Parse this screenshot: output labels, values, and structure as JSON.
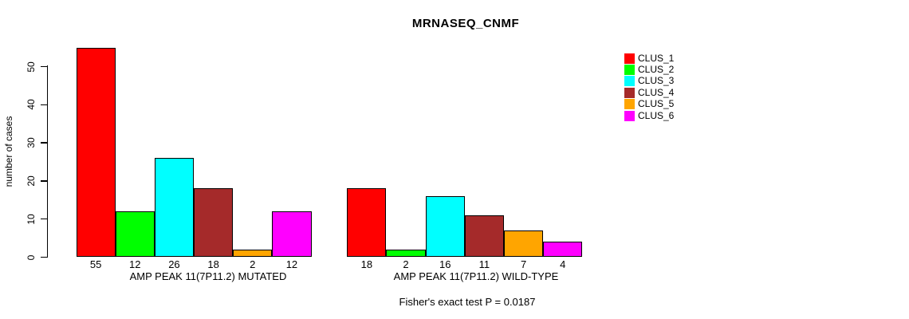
{
  "chart_data": {
    "type": "bar",
    "title": "MRNASEQ_CNMF",
    "ylabel": "number of cases",
    "xlabel": "",
    "yticks": [
      0,
      10,
      20,
      30,
      40,
      50
    ],
    "ylim": [
      0,
      55
    ],
    "grid": false,
    "legend_position": "right",
    "categories": [
      "AMP PEAK 11(7P11.2) MUTATED",
      "AMP PEAK 11(7P11.2) WILD-TYPE"
    ],
    "series": [
      {
        "name": "CLUS_1",
        "color": "#FF0000",
        "values": [
          55,
          18
        ]
      },
      {
        "name": "CLUS_2",
        "color": "#00FF00",
        "values": [
          12,
          2
        ]
      },
      {
        "name": "CLUS_3",
        "color": "#00FFFF",
        "values": [
          26,
          16
        ]
      },
      {
        "name": "CLUS_4",
        "color": "#A52A2A",
        "values": [
          18,
          11
        ]
      },
      {
        "name": "CLUS_5",
        "color": "#FFA500",
        "values": [
          2,
          7
        ]
      },
      {
        "name": "CLUS_6",
        "color": "#FF00FF",
        "values": [
          12,
          4
        ]
      }
    ],
    "bar_value_labels": [
      [
        55,
        12,
        26,
        18,
        2,
        12
      ],
      [
        18,
        2,
        16,
        11,
        7,
        4
      ]
    ],
    "annotation": "Fisher's exact test P = 0.0187"
  }
}
